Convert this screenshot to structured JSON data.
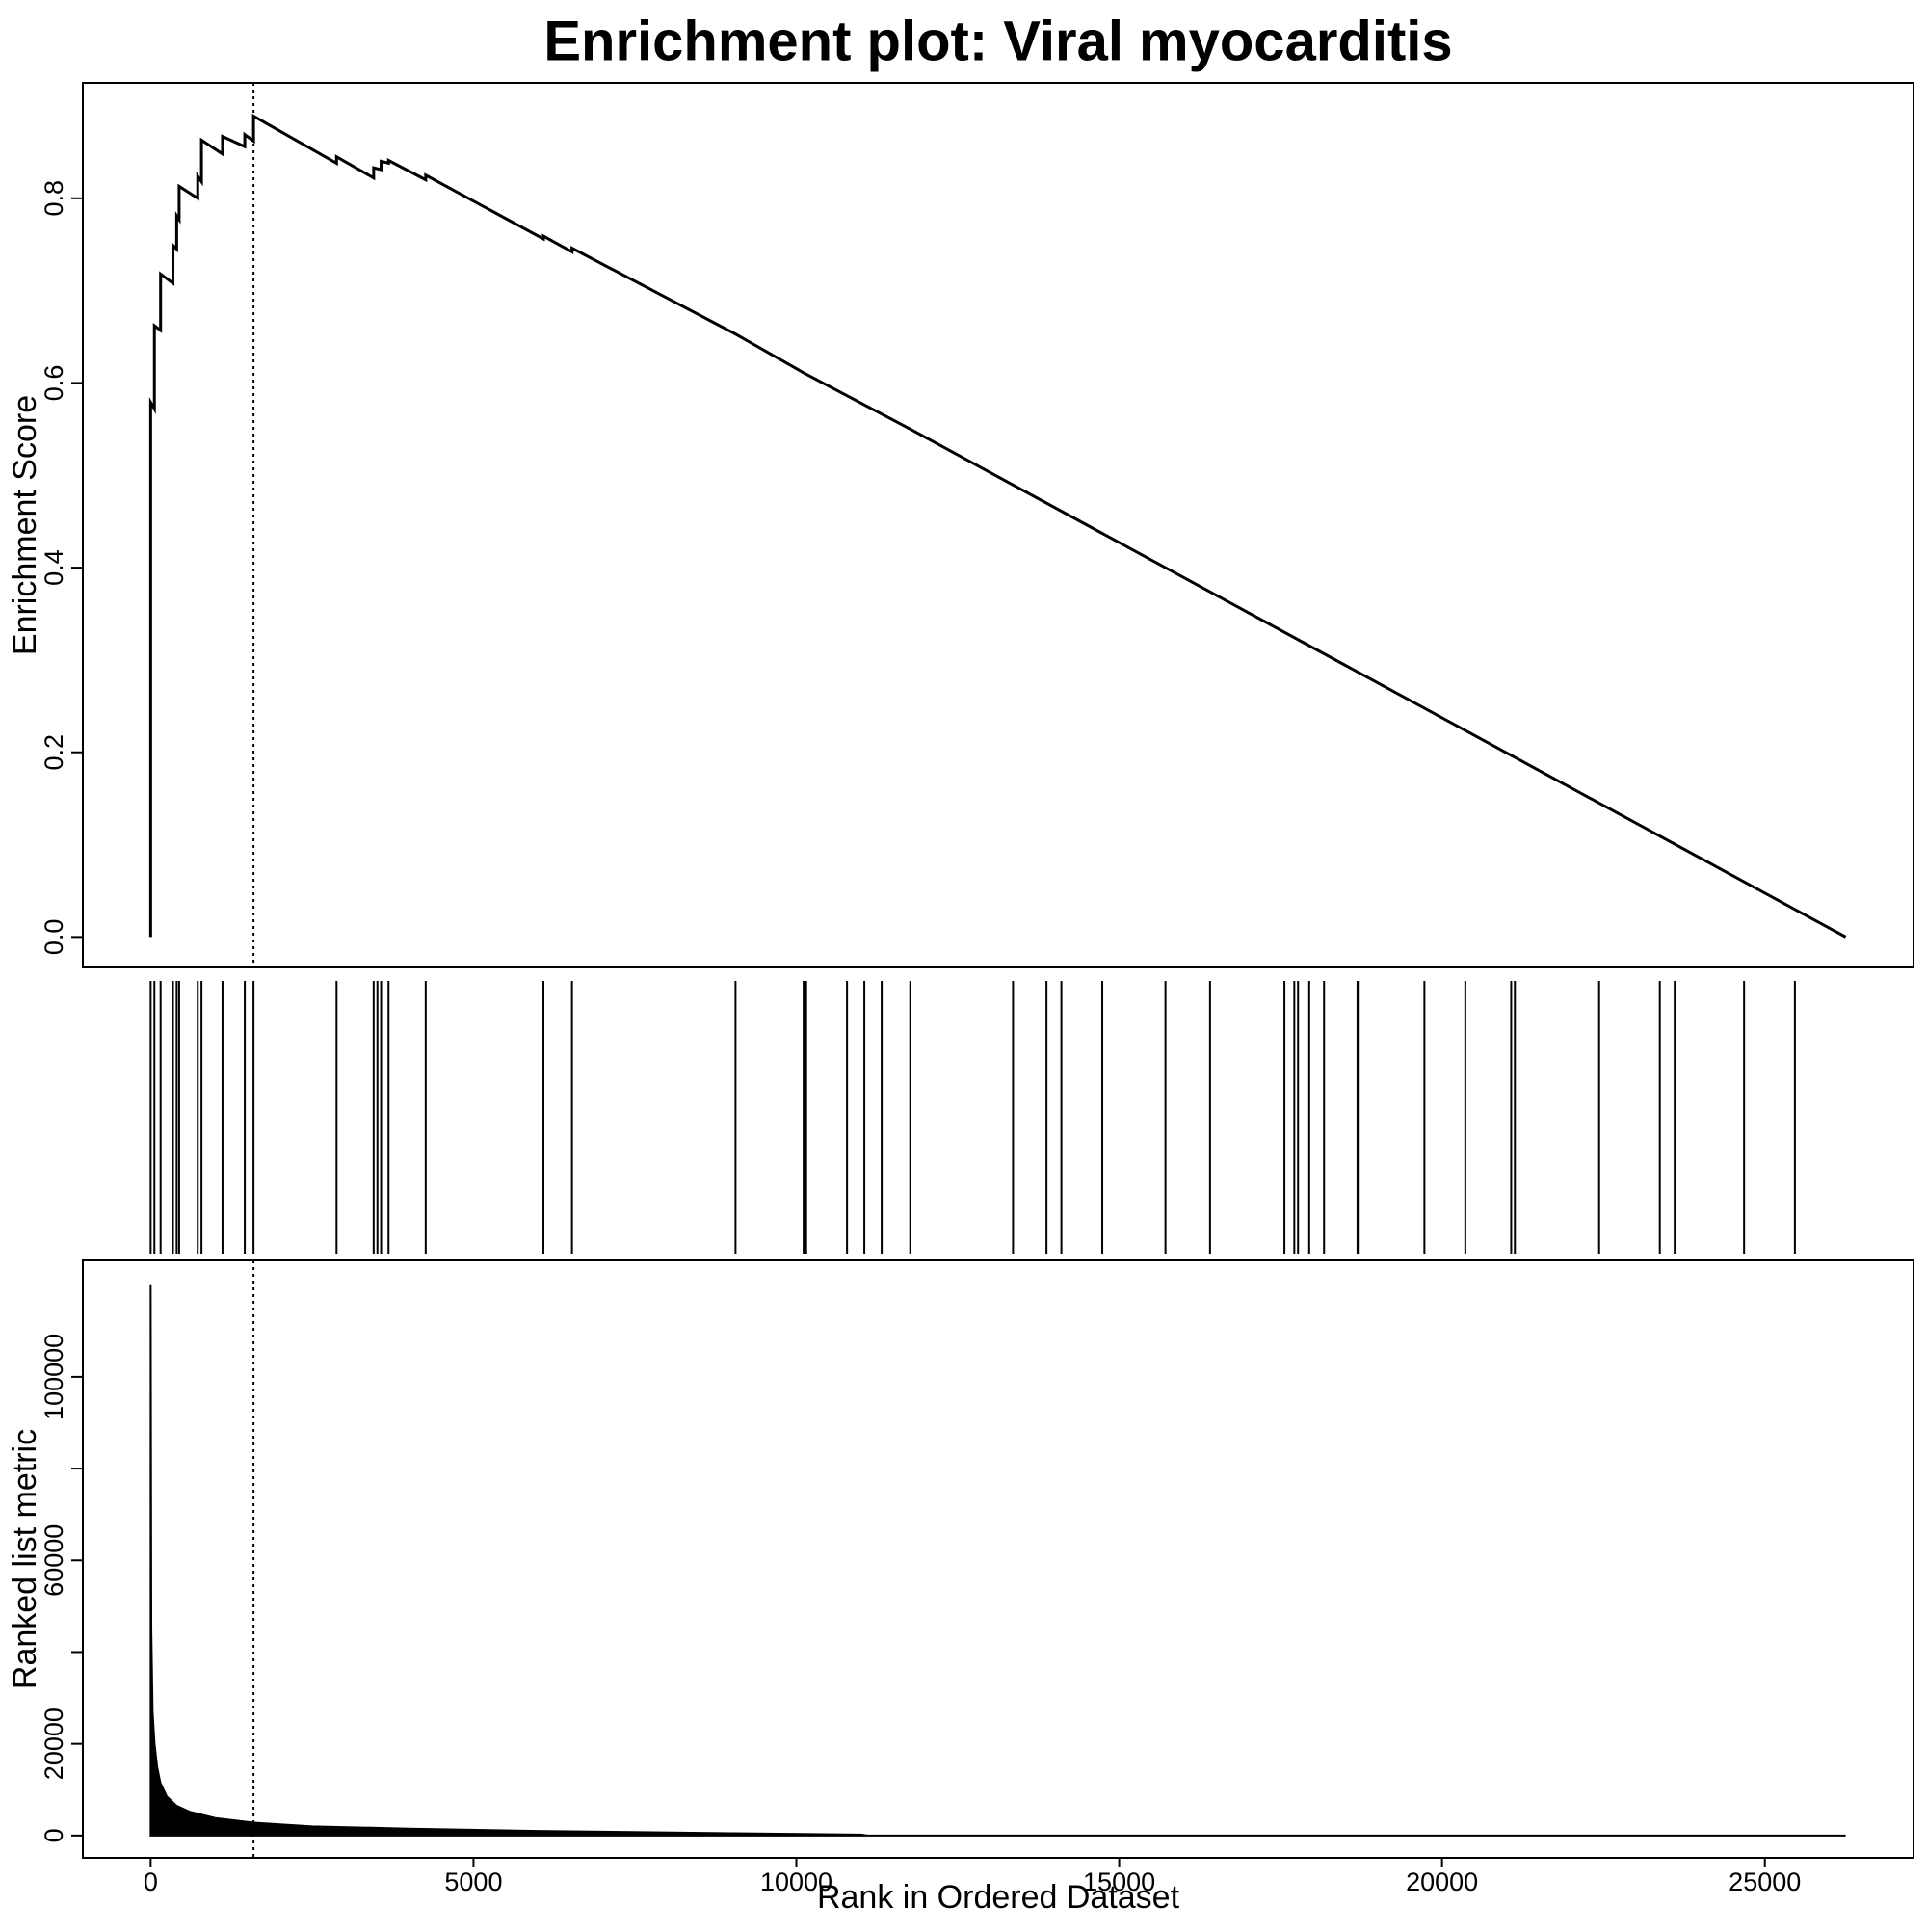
{
  "chart_data": [
    {
      "type": "line",
      "title": "Enrichment plot: Viral myocarditis",
      "y_label": "Enrichment Score",
      "x": [
        0,
        0,
        58,
        58,
        154,
        154,
        345,
        345,
        403,
        403,
        441,
        441,
        729,
        729,
        787,
        787,
        1113,
        1113,
        1458,
        1458,
        1593,
        1593,
        2879,
        2879,
        3454,
        3454,
        3569,
        3569,
        3684,
        3684,
        4260,
        4260,
        6083,
        6083,
        6525,
        6525,
        9058,
        10113,
        11764,
        26252
      ],
      "values": [
        0,
        0.579,
        0.572,
        0.662,
        0.657,
        0.718,
        0.708,
        0.749,
        0.745,
        0.781,
        0.777,
        0.813,
        0.8,
        0.824,
        0.818,
        0.863,
        0.848,
        0.867,
        0.856,
        0.869,
        0.862,
        0.889,
        0.838,
        0.845,
        0.822,
        0.833,
        0.831,
        0.84,
        0.838,
        0.841,
        0.82,
        0.825,
        0.756,
        0.759,
        0.742,
        0.746,
        0.653,
        0.611,
        0.55,
        0
      ],
      "color": "#000000",
      "xlim": [
        -1050,
        27302
      ],
      "ylim": [
        -0.033,
        0.925
      ],
      "yticks": [
        {
          "value": 0,
          "label": "0.0"
        },
        0.2,
        0.4,
        0.6,
        0.8
      ],
      "vline": 1593
    },
    {
      "type": "rug",
      "x": [
        0,
        58,
        154,
        345,
        403,
        441,
        729,
        787,
        1113,
        1458,
        1593,
        2879,
        3454,
        3512,
        3569,
        3684,
        4260,
        6083,
        6525,
        9058,
        10113,
        10152,
        10785,
        11053,
        11322,
        11764,
        13356,
        13874,
        14105,
        14738,
        15717,
        16407,
        17559,
        17712,
        17770,
        17943,
        18173,
        18691,
        18710,
        19727,
        20361,
        21071,
        21128,
        22433,
        23373,
        23604,
        24678,
        25465
      ],
      "color": "#000000",
      "xlim": [
        -1050,
        27302
      ]
    },
    {
      "type": "area",
      "y_label": "Ranked list metric",
      "x_label": "Rank in Ordered Dataset",
      "x": [
        0,
        10,
        30,
        60,
        100,
        150,
        250,
        400,
        600,
        1000,
        1593,
        2500,
        4000,
        6000,
        9000,
        11000,
        11100,
        15000,
        20000,
        26252
      ],
      "values": [
        120000,
        45000,
        27000,
        20000,
        15000,
        11500,
        8500,
        6500,
        5200,
        3800,
        2800,
        2000,
        1500,
        1000,
        500,
        200,
        0,
        0,
        0,
        0
      ],
      "color": "#000000",
      "xlim": [
        -1050,
        27302
      ],
      "ylim": [
        -4865,
        125400
      ],
      "xticks": [
        0,
        5000,
        10000,
        15000,
        20000,
        25000
      ],
      "yticks": [
        0,
        20000,
        {
          "value": 40000,
          "label": null
        },
        60000,
        {
          "value": 80000,
          "label": null
        },
        100000
      ],
      "vline": 1593
    }
  ]
}
